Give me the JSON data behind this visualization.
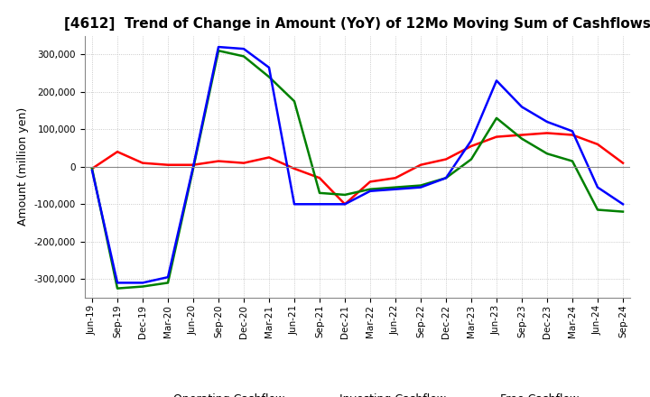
{
  "title": "[4612]  Trend of Change in Amount (YoY) of 12Mo Moving Sum of Cashflows",
  "ylabel": "Amount (million yen)",
  "x_labels": [
    "Jun-19",
    "Sep-19",
    "Dec-19",
    "Mar-20",
    "Jun-20",
    "Sep-20",
    "Dec-20",
    "Mar-21",
    "Jun-21",
    "Sep-21",
    "Dec-21",
    "Mar-22",
    "Jun-22",
    "Sep-22",
    "Dec-22",
    "Mar-23",
    "Jun-23",
    "Sep-23",
    "Dec-23",
    "Mar-24",
    "Jun-24",
    "Sep-24"
  ],
  "operating": [
    -5000,
    40000,
    10000,
    5000,
    5000,
    15000,
    10000,
    25000,
    -5000,
    -30000,
    -100000,
    -40000,
    -30000,
    5000,
    20000,
    55000,
    80000,
    85000,
    90000,
    85000,
    60000,
    10000
  ],
  "investing": [
    -5000,
    -325000,
    -320000,
    -310000,
    -5000,
    310000,
    295000,
    240000,
    175000,
    -70000,
    -75000,
    -60000,
    -55000,
    -50000,
    -30000,
    20000,
    130000,
    75000,
    35000,
    15000,
    -115000,
    -120000
  ],
  "free": [
    -10000,
    -310000,
    -310000,
    -295000,
    0,
    320000,
    315000,
    265000,
    -100000,
    -100000,
    -100000,
    -65000,
    -60000,
    -55000,
    -30000,
    70000,
    230000,
    160000,
    120000,
    95000,
    -55000,
    -100000
  ],
  "operating_color": "#ff0000",
  "investing_color": "#008000",
  "free_color": "#0000ff",
  "ylim": [
    -350000,
    350000
  ],
  "yticks": [
    -300000,
    -200000,
    -100000,
    0,
    100000,
    200000,
    300000
  ],
  "bg_color": "#ffffff",
  "grid_color": "#bbbbbb",
  "title_fontsize": 11,
  "tick_fontsize": 7.5,
  "ylabel_fontsize": 9,
  "legend_fontsize": 9,
  "linewidth": 1.8
}
